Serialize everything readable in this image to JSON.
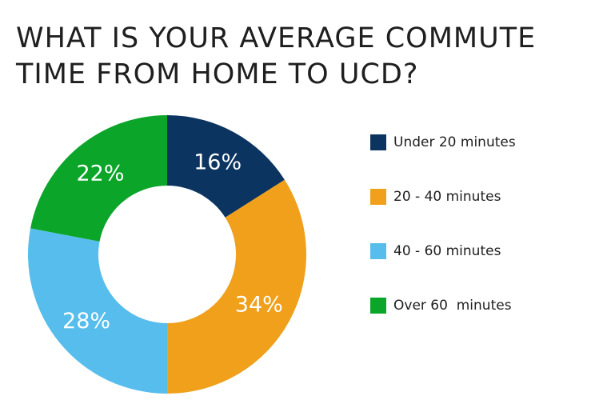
{
  "chart_data": {
    "type": "pie",
    "donut": true,
    "title": "WHAT IS YOUR AVERAGE COMMUTE TIME FROM HOME TO UCD?",
    "categories": [
      "Under 20 minutes",
      "20 - 40 minutes",
      "40 - 60 minutes",
      "Over 60  minutes"
    ],
    "values": [
      16,
      34,
      28,
      22
    ],
    "data_labels": [
      "16%",
      "34%",
      "28%",
      "22%"
    ],
    "colors": [
      "#0b3560",
      "#f0a01a",
      "#56bdec",
      "#0ba52a"
    ],
    "legend_position": "right",
    "start_angle": "12 o'clock, clockwise"
  }
}
